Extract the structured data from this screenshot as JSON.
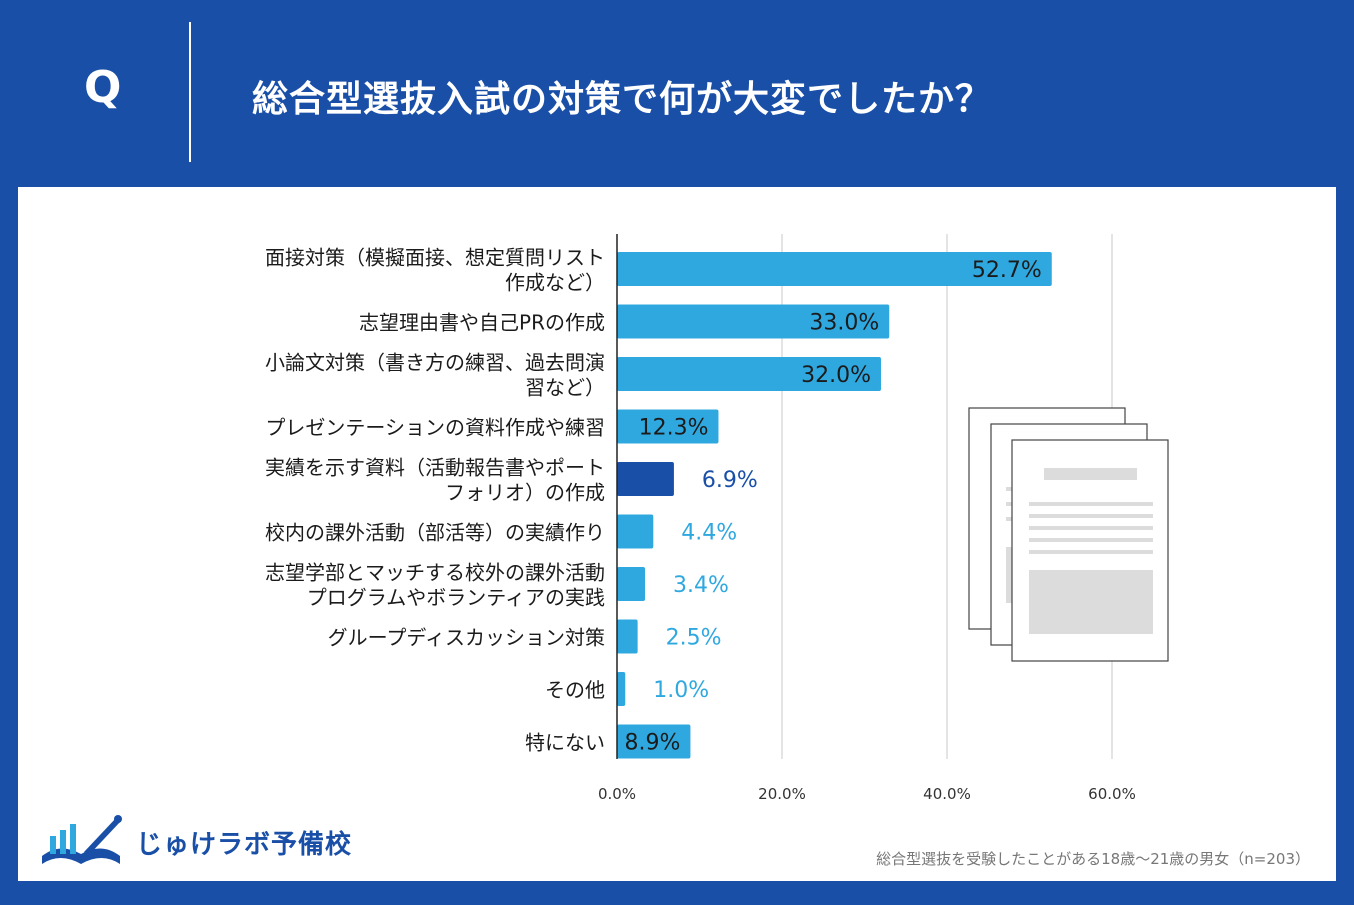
{
  "header": {
    "q_label": "Q",
    "title": "総合型選抜入試の対策で何が大変でしたか？"
  },
  "chart_data": {
    "type": "bar",
    "orientation": "horizontal",
    "categories": [
      [
        "面接対策（模擬面接、想定質問リスト",
        "作成など）"
      ],
      [
        "志望理由書や自己PRの作成"
      ],
      [
        "小論文対策（書き方の練習、過去問演",
        "習など）"
      ],
      [
        "プレゼンテーションの資料作成や練習"
      ],
      [
        "実績を示す資料（活動報告書やポート",
        "フォリオ）の作成"
      ],
      [
        "校内の課外活動（部活等）の実績作り"
      ],
      [
        "志望学部とマッチする校外の課外活動",
        "プログラムやボランティアの実践"
      ],
      [
        "グループディスカッション対策"
      ],
      [
        "その他"
      ],
      [
        "特にない"
      ]
    ],
    "values": [
      52.7,
      33.0,
      32.0,
      12.3,
      6.9,
      4.4,
      3.4,
      2.5,
      1.0,
      8.9
    ],
    "value_labels": [
      "52.7%",
      "33.0%",
      "32.0%",
      "12.3%",
      "6.9%",
      "4.4%",
      "3.4%",
      "2.5%",
      "1.0%",
      "8.9%"
    ],
    "highlight_index": 4,
    "x_ticks": [
      "0.0%",
      "20.0%",
      "40.0%",
      "60.0%"
    ],
    "xlim": [
      0,
      60
    ],
    "grid": true,
    "colors": {
      "bar": "#2fa8e0",
      "highlight": "#1a4fa7",
      "label_outside": "#2fa8e0"
    }
  },
  "logo": {
    "text": "じゅけラボ予備校"
  },
  "footnote": "総合型選抜を受験したことがある18歳～21歳の男女（n=203）",
  "colors": {
    "background": "#1a4fa7",
    "panel": "#ffffff"
  }
}
